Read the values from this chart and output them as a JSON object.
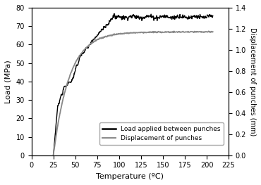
{
  "title": "",
  "xlabel": "Temperature (ºC)",
  "ylabel_left": "Load (MPa)",
  "ylabel_right": "Displacement of punches (mm)",
  "xlim": [
    0,
    225
  ],
  "ylim_left": [
    0,
    80
  ],
  "ylim_right": [
    0,
    1.4
  ],
  "xticks": [
    0,
    25,
    50,
    75,
    100,
    125,
    150,
    175,
    200,
    225
  ],
  "yticks_left": [
    0,
    10,
    20,
    30,
    40,
    50,
    60,
    70,
    80
  ],
  "yticks_right": [
    0,
    0.2,
    0.4,
    0.6,
    0.8,
    1.0,
    1.2,
    1.4
  ],
  "legend_labels": [
    "Load applied between punches",
    "Displacement of punches"
  ],
  "line_color_load": "#000000",
  "line_color_disp": "#888888",
  "background_color": "#ffffff",
  "figsize": [
    3.7,
    2.63
  ],
  "dpi": 100,
  "load_plateau": 75.0,
  "load_plateau_start_t": 93,
  "load_noise_plateau": 0.6,
  "disp_max": 1.17,
  "disp_rate": 0.055,
  "disp_start_t": 25
}
